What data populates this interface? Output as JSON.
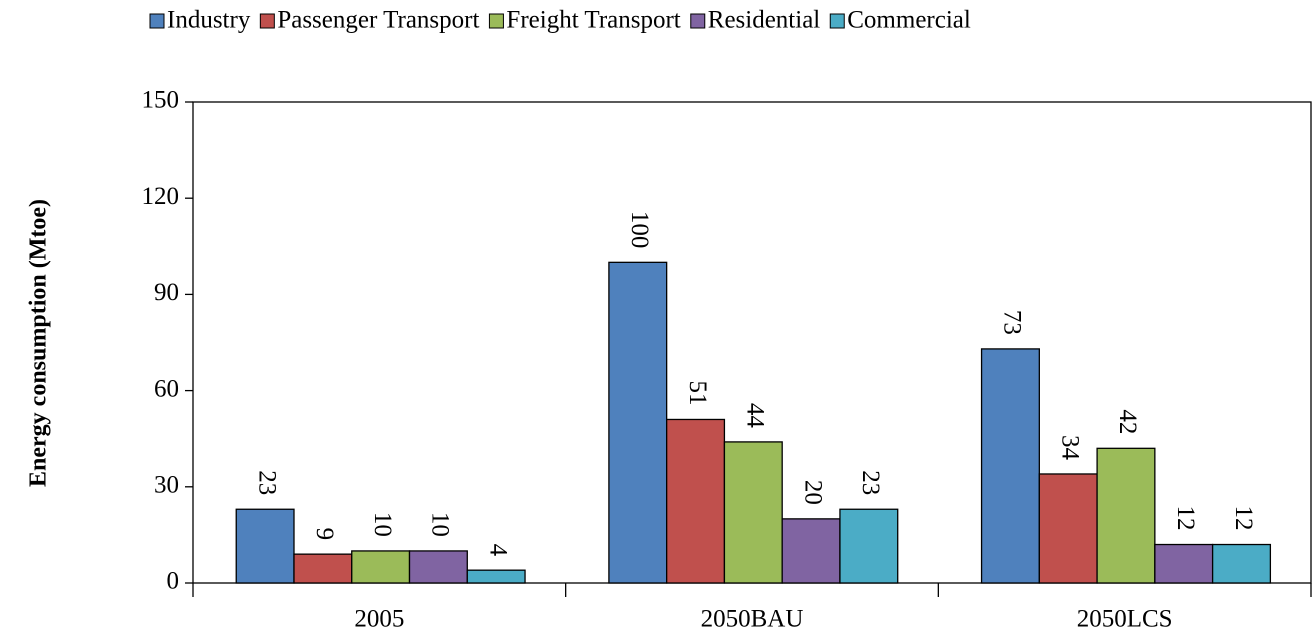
{
  "chart_data": {
    "type": "bar",
    "y_label": "Energy consumption (Mtoe)",
    "categories": [
      "2005",
      "2050BAU",
      "2050LCS"
    ],
    "series": [
      {
        "name": "Industry",
        "color": "#4f81bd",
        "values": [
          23,
          100,
          73
        ]
      },
      {
        "name": "Passenger Transport",
        "color": "#c0504d",
        "values": [
          9,
          51,
          34
        ]
      },
      {
        "name": "Freight Transport",
        "color": "#9bbb59",
        "values": [
          10,
          44,
          42
        ]
      },
      {
        "name": "Residential",
        "color": "#8064a2",
        "values": [
          10,
          20,
          12
        ]
      },
      {
        "name": "Commercial",
        "color": "#4bacc6",
        "values": [
          4,
          23,
          12
        ]
      }
    ],
    "ylim": [
      0,
      150
    ],
    "yticks": [
      0,
      30,
      60,
      90,
      120,
      150
    ],
    "legend": "top",
    "grid": false
  }
}
